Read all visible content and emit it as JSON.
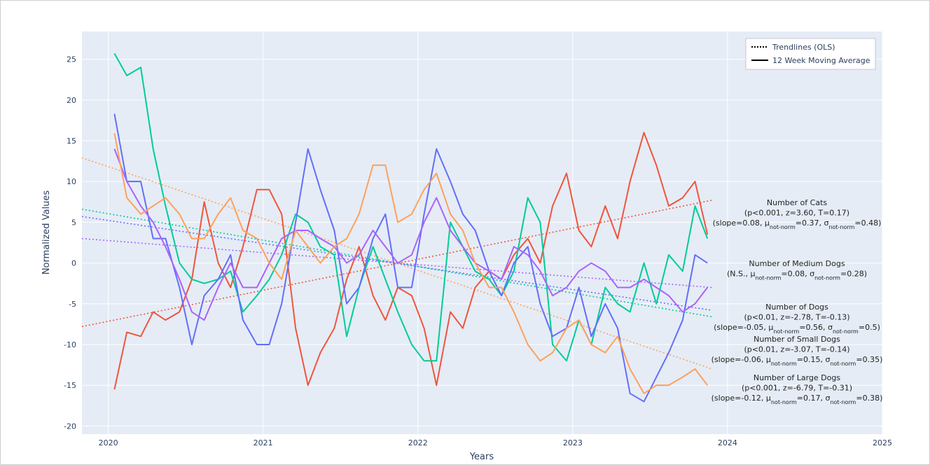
{
  "chart_data": {
    "type": "line",
    "x_label": "Years",
    "y_label": "Normalized Values",
    "xlim": [
      2019.83,
      2025
    ],
    "ylim": [
      -21,
      28.4
    ],
    "xticks": [
      2020,
      2021,
      2022,
      2023,
      2024,
      2025
    ],
    "yticks": [
      -20,
      -15,
      -10,
      -5,
      0,
      5,
      10,
      15,
      20,
      25
    ],
    "grid": true,
    "x": [
      2020.04,
      2020.12,
      2020.21,
      2020.29,
      2020.37,
      2020.46,
      2020.54,
      2020.62,
      2020.71,
      2020.79,
      2020.87,
      2020.96,
      2021.04,
      2021.12,
      2021.21,
      2021.29,
      2021.37,
      2021.46,
      2021.54,
      2021.62,
      2021.71,
      2021.79,
      2021.87,
      2021.96,
      2022.04,
      2022.12,
      2022.21,
      2022.29,
      2022.37,
      2022.46,
      2022.54,
      2022.62,
      2022.71,
      2022.79,
      2022.87,
      2022.96,
      2023.04,
      2023.12,
      2023.21,
      2023.29,
      2023.37,
      2023.46,
      2023.54,
      2023.62,
      2023.71,
      2023.79,
      2023.87
    ],
    "trend_x": [
      2019.83,
      2023.9
    ],
    "series": [
      {
        "color": "#EF553B",
        "trend": [
          -7.8,
          7.7
        ],
        "values": [
          -15.5,
          -8.5,
          -9,
          -6,
          -7,
          -6,
          -2,
          7.5,
          0,
          -3,
          2,
          9,
          9,
          6,
          -8,
          -15,
          -11,
          -8,
          -2,
          2,
          -4,
          -7,
          -3,
          -4,
          -8,
          -15,
          -6,
          -8,
          -3,
          -1,
          -2,
          1,
          3,
          0,
          7,
          11,
          4,
          2,
          7,
          3,
          10,
          16,
          12,
          7,
          8,
          10,
          3.5
        ]
      },
      {
        "color": "#00CC96",
        "trend": [
          6.6,
          -6.6
        ],
        "values": [
          25.7,
          23,
          24,
          14,
          7,
          0,
          -2,
          -2.5,
          -2,
          -1,
          -6,
          -4,
          -2,
          1,
          6,
          5,
          2,
          1,
          -9,
          -3,
          2,
          -2,
          -6,
          -10,
          -12,
          -12,
          5,
          2,
          -1,
          -2,
          -4,
          -1,
          8,
          5,
          -10,
          -12,
          -7,
          -10,
          -3,
          -5,
          -6,
          0,
          -5,
          1,
          -1,
          7,
          3
        ]
      },
      {
        "color": "#636EFA",
        "trend": [
          5.7,
          -5.8
        ],
        "values": [
          18.3,
          10,
          10,
          3,
          3,
          -3,
          -10,
          -4,
          -2,
          1,
          -7,
          -10,
          -10,
          -5,
          5,
          14,
          9,
          4,
          -5,
          -3,
          3,
          6,
          -3,
          -3,
          6,
          14,
          10,
          6,
          4,
          -1,
          -4,
          0,
          2,
          -5,
          -9,
          -8,
          -3,
          -9,
          -5,
          -8,
          -16,
          -17,
          -14,
          -11,
          -7,
          1,
          0
        ]
      },
      {
        "color": "#AB63FA",
        "trend": [
          3,
          -3
        ],
        "values": [
          14,
          10,
          7,
          5,
          2,
          -2,
          -6,
          -7,
          -3,
          0,
          -3,
          -3,
          0,
          3,
          4,
          4,
          3,
          2,
          0,
          1,
          4,
          2,
          0,
          1,
          5,
          8,
          4,
          2,
          0,
          -1,
          -2,
          2,
          1,
          -1,
          -4,
          -3,
          -1,
          0,
          -1,
          -3,
          -3,
          -2,
          -3,
          -4,
          -6,
          -5,
          -3
        ]
      },
      {
        "color": "#FFA15A",
        "trend": [
          12.9,
          -13
        ],
        "values": [
          15.9,
          8,
          6,
          7,
          8,
          6,
          3,
          3,
          6,
          8,
          4,
          3,
          0,
          -2,
          4,
          2,
          0,
          2,
          3,
          6,
          12,
          12,
          5,
          6,
          9,
          11,
          6,
          4,
          0,
          -3,
          -3,
          -6,
          -10,
          -12,
          -11,
          -8,
          -7,
          -10,
          -11,
          -9,
          -13,
          -16,
          -15,
          -15,
          -14,
          -13,
          -15
        ]
      }
    ],
    "legend": {
      "position": "top-right",
      "items": [
        {
          "label": "Trendlines (OLS)",
          "dash": "dot"
        },
        {
          "label": "12 Week Moving Average",
          "dash": "solid"
        }
      ]
    },
    "annotations": [
      {
        "lines": [
          [
            "Number of Cats"
          ],
          [
            "(p<0.001, z=3.60, T=0.17)"
          ],
          [
            "(slope=0.08, μ",
            {
              "sub": "not-norm"
            },
            "=0.37, σ",
            {
              "sub": "not-norm"
            },
            "=0.48)"
          ]
        ]
      },
      {
        "lines": [
          [
            "Number of Medium Dogs"
          ],
          [
            "(N.S., μ",
            {
              "sub": "not-norm"
            },
            "=0.08, σ",
            {
              "sub": "not-norm"
            },
            "=0.28)"
          ]
        ]
      },
      {
        "lines": [
          [
            "Number of Dogs"
          ],
          [
            "(p<0.01, z=-2.78, T=-0.13)"
          ],
          [
            "(slope=-0.05, μ",
            {
              "sub": "not-norm"
            },
            "=0.56, σ",
            {
              "sub": "not-norm"
            },
            "=0.5)"
          ]
        ]
      },
      {
        "lines": [
          [
            "Number of Small Dogs"
          ],
          [
            "(p<0.01, z=-3.07, T=-0.14)"
          ],
          [
            "(slope=-0.06, μ",
            {
              "sub": "not-norm"
            },
            "=0.15, σ",
            {
              "sub": "not-norm"
            },
            "=0.35)"
          ]
        ]
      },
      {
        "lines": [
          [
            "Number of Large Dogs"
          ],
          [
            "(p<0.001, z=-6.79, T=-0.31)"
          ],
          [
            "(slope=-0.12, μ",
            {
              "sub": "not-norm"
            },
            "=0.17, σ",
            {
              "sub": "not-norm"
            },
            "=0.38)"
          ]
        ]
      }
    ]
  }
}
